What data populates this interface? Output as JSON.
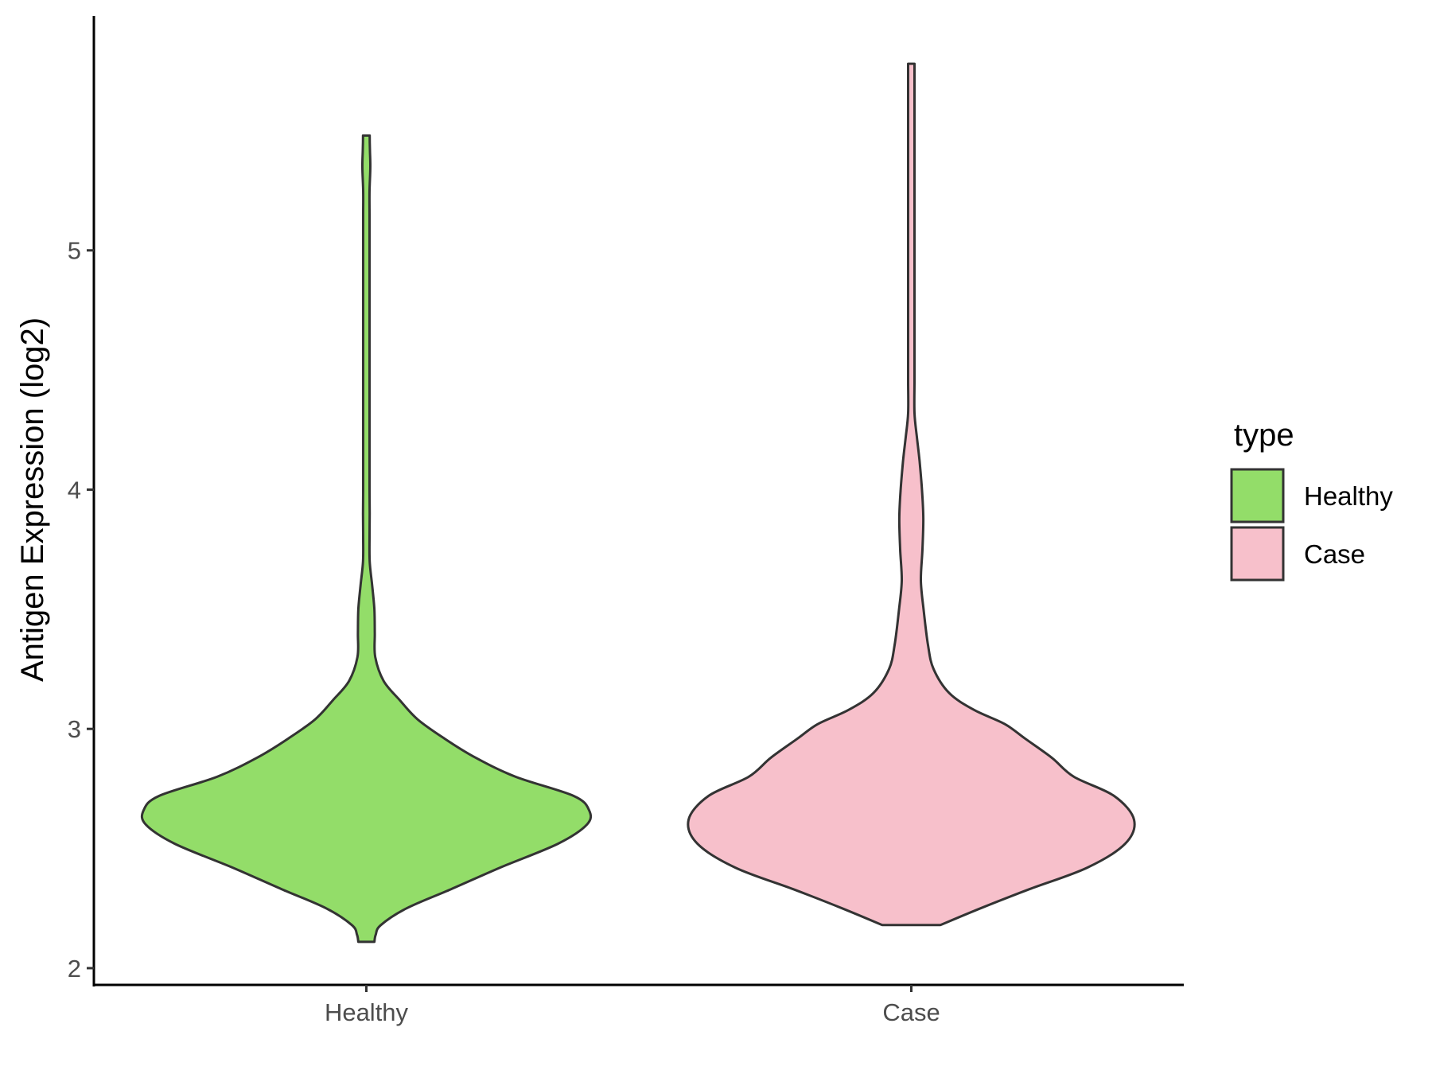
{
  "chart_data": {
    "type": "violin",
    "ylabel": "Antigen Expression (log2)",
    "xlabel": "",
    "categories": [
      "Healthy",
      "Case"
    ],
    "ylim": [
      1.93,
      5.98
    ],
    "yticks": [
      "2",
      "3",
      "4",
      "5"
    ],
    "grid": false,
    "legend": {
      "title": "type",
      "position": "right",
      "entries": [
        {
          "label": "Healthy",
          "color": "#93dd69"
        },
        {
          "label": "Case",
          "color": "#f7c0cb"
        }
      ]
    },
    "series": [
      {
        "name": "Healthy",
        "color": "#93dd69",
        "range": [
          2.11,
          5.48
        ],
        "density_profile": [
          [
            2.11,
            0.036
          ],
          [
            2.14,
            0.042
          ],
          [
            2.18,
            0.065
          ],
          [
            2.25,
            0.18
          ],
          [
            2.33,
            0.38
          ],
          [
            2.42,
            0.6
          ],
          [
            2.52,
            0.86
          ],
          [
            2.6,
            0.99
          ],
          [
            2.66,
            1.0
          ],
          [
            2.72,
            0.93
          ],
          [
            2.8,
            0.67
          ],
          [
            2.88,
            0.49
          ],
          [
            2.96,
            0.35
          ],
          [
            3.04,
            0.23
          ],
          [
            3.12,
            0.15
          ],
          [
            3.2,
            0.078
          ],
          [
            3.3,
            0.04
          ],
          [
            3.4,
            0.038
          ],
          [
            3.5,
            0.036
          ],
          [
            3.6,
            0.026
          ],
          [
            3.7,
            0.015
          ],
          [
            3.8,
            0.013
          ],
          [
            3.9,
            0.015
          ],
          [
            4.0,
            0.011
          ],
          [
            4.1,
            0.003
          ],
          [
            4.2,
            0.002
          ],
          [
            4.5,
            0.002
          ],
          [
            5.0,
            0.002
          ],
          [
            5.15,
            0.004
          ],
          [
            5.25,
            0.013
          ],
          [
            5.35,
            0.018
          ],
          [
            5.42,
            0.016
          ],
          [
            5.48,
            0.015
          ]
        ]
      },
      {
        "name": "Case",
        "color": "#f7c0cb",
        "range": [
          2.18,
          5.78
        ],
        "density_profile": [
          [
            2.18,
            0.13
          ],
          [
            2.25,
            0.31
          ],
          [
            2.33,
            0.53
          ],
          [
            2.42,
            0.79
          ],
          [
            2.52,
            0.96
          ],
          [
            2.62,
            1.0
          ],
          [
            2.72,
            0.91
          ],
          [
            2.8,
            0.73
          ],
          [
            2.88,
            0.63
          ],
          [
            2.96,
            0.51
          ],
          [
            3.02,
            0.42
          ],
          [
            3.08,
            0.28
          ],
          [
            3.15,
            0.17
          ],
          [
            3.25,
            0.1
          ],
          [
            3.35,
            0.075
          ],
          [
            3.5,
            0.055
          ],
          [
            3.62,
            0.043
          ],
          [
            3.75,
            0.05
          ],
          [
            3.88,
            0.054
          ],
          [
            4.0,
            0.048
          ],
          [
            4.12,
            0.037
          ],
          [
            4.22,
            0.025
          ],
          [
            4.32,
            0.014
          ],
          [
            4.45,
            0.01
          ],
          [
            4.55,
            0.012
          ],
          [
            4.7,
            0.006
          ],
          [
            4.85,
            0.012
          ],
          [
            4.95,
            0.012
          ],
          [
            5.1,
            0.007
          ],
          [
            5.25,
            0.002
          ],
          [
            5.4,
            0.001
          ],
          [
            5.6,
            0.0008
          ],
          [
            5.7,
            0.0006
          ],
          [
            5.78,
            0.0004
          ]
        ]
      }
    ]
  }
}
